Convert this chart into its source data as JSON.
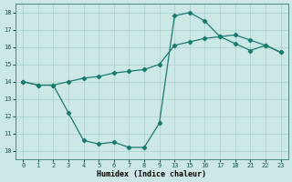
{
  "xlabel": "Humidex (Indice chaleur)",
  "bg_color": "#cce8e6",
  "grid_color": "#aacfcf",
  "line_color": "#1a7a6e",
  "xlim": [
    -0.5,
    17.5
  ],
  "ylim": [
    9.5,
    18.5
  ],
  "xtick_positions": [
    0,
    1,
    2,
    3,
    4,
    5,
    6,
    7,
    8,
    9,
    10,
    11,
    12,
    13,
    14,
    15,
    16,
    17
  ],
  "xtick_labels": [
    "0",
    "1",
    "2",
    "3",
    "4",
    "5",
    "6",
    "7",
    "8",
    "9",
    "13",
    "15",
    "16",
    "17",
    "18",
    "21",
    "22",
    "23"
  ],
  "yticks": [
    10,
    11,
    12,
    13,
    14,
    15,
    16,
    17,
    18
  ],
  "curve1_pos": [
    0,
    1,
    2,
    3,
    4,
    5,
    6,
    7,
    8,
    9,
    10,
    11,
    12,
    13,
    14,
    15,
    16,
    17
  ],
  "curve1_y": [
    14.0,
    13.8,
    13.8,
    12.2,
    10.6,
    10.4,
    10.5,
    10.2,
    10.2,
    11.6,
    17.8,
    18.0,
    17.5,
    16.6,
    16.2,
    15.8,
    16.1,
    15.7
  ],
  "curve2_pos": [
    0,
    1,
    2,
    3,
    4,
    5,
    6,
    7,
    8,
    9,
    10,
    11,
    12,
    13,
    14,
    15,
    16,
    17
  ],
  "curve2_y": [
    14.0,
    13.8,
    13.8,
    14.0,
    14.2,
    14.3,
    14.5,
    14.6,
    14.7,
    15.0,
    16.1,
    16.3,
    16.5,
    16.6,
    16.7,
    16.4,
    16.1,
    15.7
  ]
}
